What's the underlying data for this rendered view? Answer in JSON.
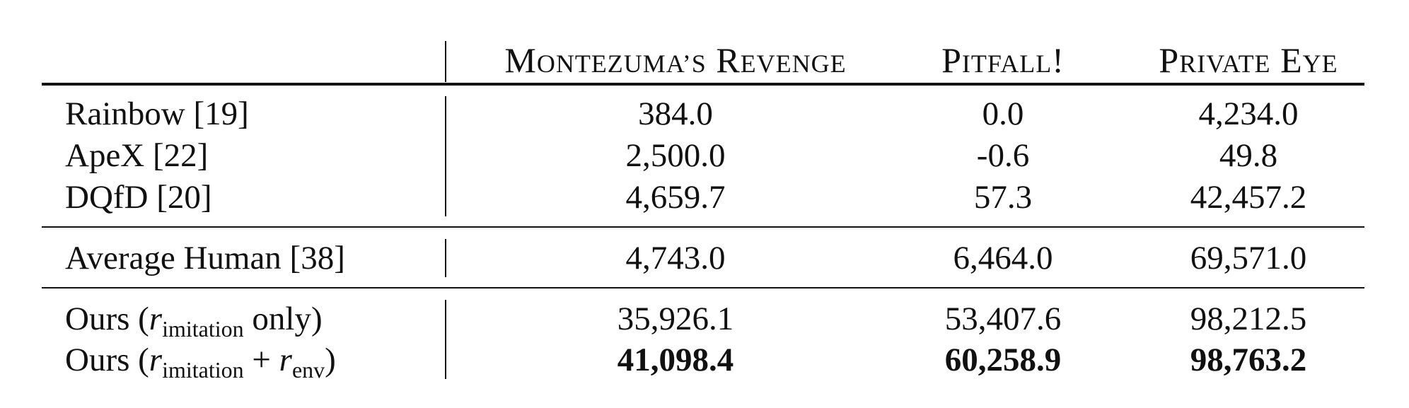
{
  "header": {
    "col1": {
      "first": "M",
      "rest": "ONTEZUMA’S",
      "first2": "R",
      "rest2": "EVENGE"
    },
    "col2": {
      "first": "P",
      "rest": "ITFALL",
      "tail": "!"
    },
    "col3": {
      "first": "P",
      "rest": "RIVATE",
      "first2": "E",
      "rest2": "YE"
    }
  },
  "groups": [
    {
      "rows": [
        {
          "label": "Rainbow [19]",
          "values": [
            "384.0",
            "0.0",
            "4,234.0"
          ],
          "bold": false
        },
        {
          "label": "ApeX [22]",
          "values": [
            "2,500.0",
            "-0.6",
            "49.8"
          ],
          "bold": false
        },
        {
          "label": "DQfD [20]",
          "values": [
            "4,659.7",
            "57.3",
            "42,457.2"
          ],
          "bold": false
        }
      ]
    },
    {
      "rows": [
        {
          "label": "Average Human [38]",
          "values": [
            "4,743.0",
            "6,464.0",
            "69,571.0"
          ],
          "bold": false
        }
      ]
    },
    {
      "rows": [
        {
          "label_prefix": "Ours (",
          "r": "r",
          "sub1": "imitation",
          "label_mid": " only)",
          "values": [
            "35,926.1",
            "53,407.6",
            "98,212.5"
          ],
          "bold": false
        },
        {
          "label_prefix": "Ours (",
          "r": "r",
          "sub1": "imitation",
          "plus": " + ",
          "r2": "r",
          "sub2": "env",
          "close": ")",
          "values": [
            "41,098.4",
            "60,258.9",
            "98,763.2"
          ],
          "bold": true
        }
      ]
    }
  ]
}
